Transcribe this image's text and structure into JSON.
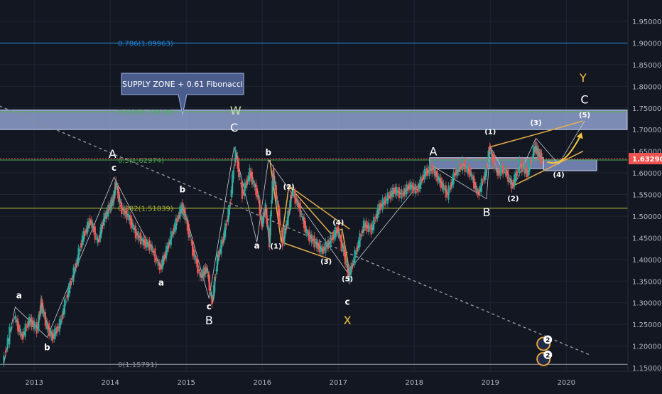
{
  "chart_data": {
    "type": "line",
    "x_axis": {
      "ticks": [
        {
          "label": "2013",
          "year": 2013
        },
        {
          "label": "2014",
          "year": 2014
        },
        {
          "label": "2015",
          "year": 2015
        },
        {
          "label": "2016",
          "year": 2016
        },
        {
          "label": "2017",
          "year": 2017
        },
        {
          "label": "2018",
          "year": 2018
        },
        {
          "label": "2019",
          "year": 2019
        },
        {
          "label": "2020",
          "year": 2020
        }
      ]
    },
    "y_axis": {
      "range": [
        1.15,
        1.98
      ],
      "ticks": [
        "1.95000",
        "1.90000",
        "1.85000",
        "1.80000",
        "1.75000",
        "1.70000",
        "1.65000",
        "1.60000",
        "1.55000",
        "1.50000",
        "1.45000",
        "1.40000",
        "1.35000",
        "1.30000",
        "1.25000",
        "1.20000",
        "1.15000"
      ]
    },
    "last_price": {
      "label": "1.63290",
      "value": 1.6329,
      "color": "#ef5350"
    },
    "series": [
      {
        "values": [
          [
            2012.6,
            1.16
          ],
          [
            2012.75,
            1.27
          ],
          [
            2012.85,
            1.22
          ],
          [
            2012.95,
            1.26
          ],
          [
            2013.05,
            1.24
          ],
          [
            2013.1,
            1.3
          ],
          [
            2013.17,
            1.25
          ],
          [
            2013.25,
            1.22
          ],
          [
            2013.35,
            1.25
          ],
          [
            2013.45,
            1.32
          ],
          [
            2013.55,
            1.38
          ],
          [
            2013.65,
            1.45
          ],
          [
            2013.75,
            1.49
          ],
          [
            2013.85,
            1.44
          ],
          [
            2013.92,
            1.49
          ],
          [
            2014.0,
            1.52
          ],
          [
            2014.05,
            1.54
          ],
          [
            2014.08,
            1.58
          ],
          [
            2014.15,
            1.52
          ],
          [
            2014.25,
            1.5
          ],
          [
            2014.35,
            1.46
          ],
          [
            2014.45,
            1.44
          ],
          [
            2014.55,
            1.43
          ],
          [
            2014.67,
            1.38
          ],
          [
            2014.75,
            1.42
          ],
          [
            2014.85,
            1.47
          ],
          [
            2014.95,
            1.52
          ],
          [
            2015.0,
            1.5
          ],
          [
            2015.1,
            1.42
          ],
          [
            2015.2,
            1.36
          ],
          [
            2015.28,
            1.38
          ],
          [
            2015.35,
            1.3
          ],
          [
            2015.42,
            1.4
          ],
          [
            2015.5,
            1.45
          ],
          [
            2015.58,
            1.52
          ],
          [
            2015.66,
            1.65
          ],
          [
            2015.75,
            1.55
          ],
          [
            2015.85,
            1.6
          ],
          [
            2015.95,
            1.55
          ],
          [
            2016.0,
            1.48
          ],
          [
            2016.05,
            1.52
          ],
          [
            2016.1,
            1.44
          ],
          [
            2016.15,
            1.6
          ],
          [
            2016.2,
            1.54
          ],
          [
            2016.28,
            1.44
          ],
          [
            2016.35,
            1.5
          ],
          [
            2016.4,
            1.56
          ],
          [
            2016.5,
            1.52
          ],
          [
            2016.6,
            1.46
          ],
          [
            2016.7,
            1.44
          ],
          [
            2016.8,
            1.42
          ],
          [
            2016.9,
            1.44
          ],
          [
            2017.0,
            1.47
          ],
          [
            2017.08,
            1.42
          ],
          [
            2017.15,
            1.36
          ],
          [
            2017.25,
            1.42
          ],
          [
            2017.35,
            1.48
          ],
          [
            2017.45,
            1.47
          ],
          [
            2017.55,
            1.52
          ],
          [
            2017.65,
            1.54
          ],
          [
            2017.75,
            1.56
          ],
          [
            2017.85,
            1.55
          ],
          [
            2017.95,
            1.57
          ],
          [
            2018.05,
            1.56
          ],
          [
            2018.15,
            1.6
          ],
          [
            2018.25,
            1.61
          ],
          [
            2018.35,
            1.58
          ],
          [
            2018.45,
            1.55
          ],
          [
            2018.55,
            1.6
          ],
          [
            2018.65,
            1.62
          ],
          [
            2018.75,
            1.6
          ],
          [
            2018.85,
            1.55
          ],
          [
            2018.95,
            1.6
          ],
          [
            2019.0,
            1.66
          ],
          [
            2019.1,
            1.6
          ],
          [
            2019.2,
            1.61
          ],
          [
            2019.3,
            1.57
          ],
          [
            2019.4,
            1.62
          ],
          [
            2019.5,
            1.6
          ],
          [
            2019.6,
            1.66
          ],
          [
            2019.65,
            1.64
          ],
          [
            2019.68,
            1.6329
          ]
        ]
      }
    ],
    "horizontal_levels": [
      {
        "label": "0.786(1.89963)",
        "value": 1.8996,
        "color": "#2196f3"
      },
      {
        "label": "0.618(1.74118)",
        "value": 1.7412,
        "color": "#4caf50"
      },
      {
        "label": "0.5(1.62974)",
        "value": 1.6297,
        "color": "#4caf50"
      },
      {
        "label": "0.382(1.51839)",
        "value": 1.5184,
        "color": "#c0ca33"
      },
      {
        "label": "0(1.15791)",
        "value": 1.1579,
        "color": "#9aa0a6"
      }
    ],
    "zones": [
      {
        "x0": 2012.2,
        "x1": 2020.8,
        "y0": 1.7,
        "y1": 1.745,
        "color": "#9fb3e6"
      },
      {
        "x0": 2018.2,
        "x1": 2019.7,
        "y0": 1.61,
        "y1": 1.635,
        "color": "#8da2d8"
      },
      {
        "x0": 2019.7,
        "x1": 2020.4,
        "y0": 1.605,
        "y1": 1.63,
        "color": "#8da2d8"
      }
    ],
    "callout": {
      "text": "SUPPLY ZONE + 0.61 Fibonacci",
      "color": "#4a5d8c"
    },
    "wave_labels": [
      {
        "text": "a",
        "x": 2012.8,
        "y": 1.31,
        "color": "#ffffff"
      },
      {
        "text": "b",
        "x": 2013.17,
        "y": 1.19,
        "color": "#ffffff"
      },
      {
        "text": "A",
        "x": 2014.03,
        "y": 1.635,
        "color": "#ffffff"
      },
      {
        "text": "c",
        "x": 2014.05,
        "y": 1.605,
        "color": "#ffffff"
      },
      {
        "text": "a",
        "x": 2014.67,
        "y": 1.34,
        "color": "#ffffff"
      },
      {
        "text": "b",
        "x": 2014.95,
        "y": 1.555,
        "color": "#ffffff"
      },
      {
        "text": "c",
        "x": 2015.3,
        "y": 1.285,
        "color": "#ffffff"
      },
      {
        "text": "B",
        "x": 2015.3,
        "y": 1.25,
        "color": "#ffffff"
      },
      {
        "text": "C",
        "x": 2015.63,
        "y": 1.695,
        "color": "#ffffff"
      },
      {
        "text": "W",
        "x": 2015.65,
        "y": 1.735,
        "color": "#c5e1a5"
      },
      {
        "text": "b",
        "x": 2016.08,
        "y": 1.64,
        "color": "#ffffff"
      },
      {
        "text": "a",
        "x": 2015.93,
        "y": 1.425,
        "color": "#ffffff"
      },
      {
        "text": "(1)",
        "x": 2016.18,
        "y": 1.425,
        "color": "#ffffff"
      },
      {
        "text": "(2)",
        "x": 2016.35,
        "y": 1.562,
        "color": "#ffffff"
      },
      {
        "text": "(3)",
        "x": 2016.84,
        "y": 1.39,
        "color": "#ffffff"
      },
      {
        "text": "(4)",
        "x": 2017.0,
        "y": 1.48,
        "color": "#ffffff"
      },
      {
        "text": "(5)",
        "x": 2017.12,
        "y": 1.35,
        "color": "#ffffff"
      },
      {
        "text": "c",
        "x": 2017.12,
        "y": 1.295,
        "color": "#ffffff"
      },
      {
        "text": "X",
        "x": 2017.12,
        "y": 1.25,
        "color": "#f5c542"
      },
      {
        "text": "A",
        "x": 2018.25,
        "y": 1.64,
        "color": "#ffffff"
      },
      {
        "text": "B",
        "x": 2018.95,
        "y": 1.5,
        "color": "#ffffff"
      },
      {
        "text": "(1)",
        "x": 2019.0,
        "y": 1.69,
        "color": "#ffffff"
      },
      {
        "text": "(2)",
        "x": 2019.3,
        "y": 1.535,
        "color": "#ffffff"
      },
      {
        "text": "(3)",
        "x": 2019.6,
        "y": 1.71,
        "color": "#ffffff"
      },
      {
        "text": "(4)",
        "x": 2019.9,
        "y": 1.59,
        "color": "#ffffff"
      },
      {
        "text": "(5)",
        "x": 2020.24,
        "y": 1.728,
        "color": "#ffffff"
      },
      {
        "text": "C",
        "x": 2020.24,
        "y": 1.76,
        "color": "#ffffff"
      },
      {
        "text": "Y",
        "x": 2020.22,
        "y": 1.81,
        "color": "#f5c542"
      }
    ],
    "trendlines": [
      {
        "points": [
          [
            2012.2,
            1.78
          ],
          [
            2020.3,
            1.18
          ]
        ],
        "color": "#8a8f98",
        "dashed": true
      },
      {
        "points": [
          [
            2016.1,
            1.63
          ],
          [
            2016.25,
            1.44
          ],
          [
            2016.35,
            1.57
          ],
          [
            2016.9,
            1.46
          ],
          [
            2017.05,
            1.47
          ],
          [
            2017.15,
            1.37
          ]
        ],
        "color": "#e8b04b",
        "dashed": false
      },
      {
        "points": [
          [
            2016.35,
            1.57
          ],
          [
            2017.15,
            1.47
          ]
        ],
        "color": "#e8b04b",
        "dashed": false
      },
      {
        "points": [
          [
            2016.25,
            1.44
          ],
          [
            2016.9,
            1.4
          ]
        ],
        "color": "#e8b04b",
        "dashed": false
      },
      {
        "points": [
          [
            2019.0,
            1.66
          ],
          [
            2019.62,
            1.69
          ],
          [
            2020.22,
            1.72
          ]
        ],
        "color": "#e8b04b",
        "dashed": false
      },
      {
        "points": [
          [
            2019.3,
            1.57
          ],
          [
            2020.22,
            1.65
          ]
        ],
        "color": "#e8b04b",
        "dashed": false
      },
      {
        "points": [
          [
            2012.6,
            1.16
          ],
          [
            2012.75,
            1.29
          ],
          [
            2013.17,
            1.22
          ],
          [
            2014.05,
            1.59
          ],
          [
            2014.67,
            1.38
          ],
          [
            2014.95,
            1.53
          ],
          [
            2015.3,
            1.31
          ],
          [
            2015.63,
            1.66
          ],
          [
            2015.93,
            1.44
          ],
          [
            2016.08,
            1.63
          ],
          [
            2017.12,
            1.37
          ],
          [
            2018.25,
            1.615
          ],
          [
            2018.95,
            1.54
          ],
          [
            2019.0,
            1.66
          ],
          [
            2019.3,
            1.565
          ],
          [
            2019.6,
            1.68
          ],
          [
            2019.9,
            1.62
          ],
          [
            2020.24,
            1.72
          ]
        ],
        "color": "#c8ccd4",
        "dashed": false
      }
    ],
    "arrow_points": [
      [
        2019.75,
        1.625
      ],
      [
        2019.93,
        1.615
      ],
      [
        2020.05,
        1.64
      ],
      [
        2020.2,
        1.69
      ]
    ],
    "badges": [
      {
        "count": "2",
        "x": 2019.7,
        "y": 1.205
      },
      {
        "count": "2",
        "x": 2019.7,
        "y": 1.17
      }
    ],
    "grid": true
  }
}
